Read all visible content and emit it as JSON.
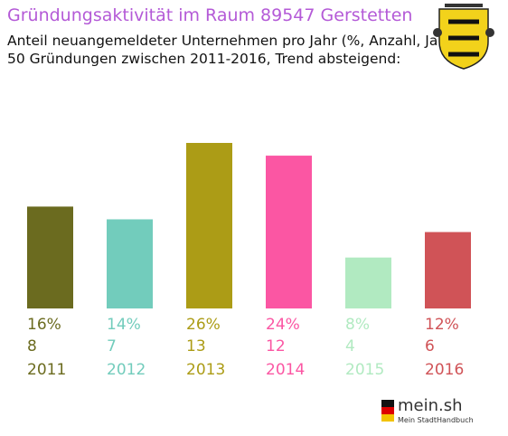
{
  "title": "Gründungsaktivität im Raum 89547 Gerstetten",
  "subtitle_line1": "Anteil neuangemeldeter Unternehmen pro Jahr (%, Anzahl, Jahr)",
  "subtitle_line2": "50 Gründungen zwischen 2011-2016, Trend absteigend:",
  "chart_data": {
    "type": "bar",
    "categories": [
      "2011",
      "2012",
      "2013",
      "2014",
      "2015",
      "2016"
    ],
    "values": [
      16,
      14,
      26,
      24,
      8,
      12
    ],
    "counts": [
      8,
      7,
      13,
      12,
      4,
      6
    ],
    "percent_labels": [
      "16%",
      "14%",
      "26%",
      "24%",
      "8%",
      "12%"
    ],
    "colors": [
      "#6b6b1f",
      "#72ccbc",
      "#ac9c16",
      "#fb56a3",
      "#b1eac1",
      "#d05357"
    ],
    "title": "Gründungsaktivität im Raum 89547 Gerstetten",
    "xlabel": "",
    "ylabel": "",
    "ylim": [
      0,
      26
    ],
    "grid": false,
    "legend": "none"
  },
  "crest_icon": "baden-wuerttemberg-coat-of-arms-icon",
  "logo": {
    "brand": "mein.sh",
    "tagline": "Mein StadtHandbuch",
    "icon": "germany-map-icon"
  }
}
